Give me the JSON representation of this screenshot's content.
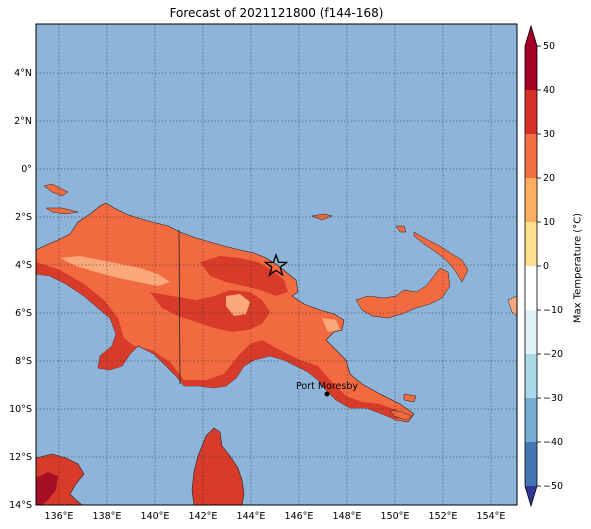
{
  "title": "Forecast of 2021121800 (f144-168)",
  "map": {
    "lon_ticks": [
      "136°E",
      "138°E",
      "140°E",
      "142°E",
      "144°E",
      "146°E",
      "148°E",
      "150°E",
      "152°E",
      "154°E"
    ],
    "lat_ticks": [
      "4°N",
      "2°N",
      "0°",
      "2°S",
      "4°S",
      "6°S",
      "8°S",
      "10°S",
      "12°S",
      "14°S"
    ],
    "city_label": "Port Moresby",
    "colors": {
      "ocean": "#8fb4da",
      "land_mid": "#f26b40",
      "land_hot": "#d83b2a",
      "land_warm": "#fba97a",
      "land_veryhot": "#a50f26"
    }
  },
  "colorbar": {
    "label": "Max Temperature (°C)",
    "ticks": [
      "50",
      "40",
      "30",
      "20",
      "10",
      "0",
      "−10",
      "−20",
      "−30",
      "−40",
      "−50"
    ],
    "colors": [
      "#a50026",
      "#d73027",
      "#f46d43",
      "#fdae61",
      "#fee090",
      "#ffffff",
      "#e0f3f8",
      "#abd9e9",
      "#74add1",
      "#4575b4",
      "#313695"
    ]
  }
}
